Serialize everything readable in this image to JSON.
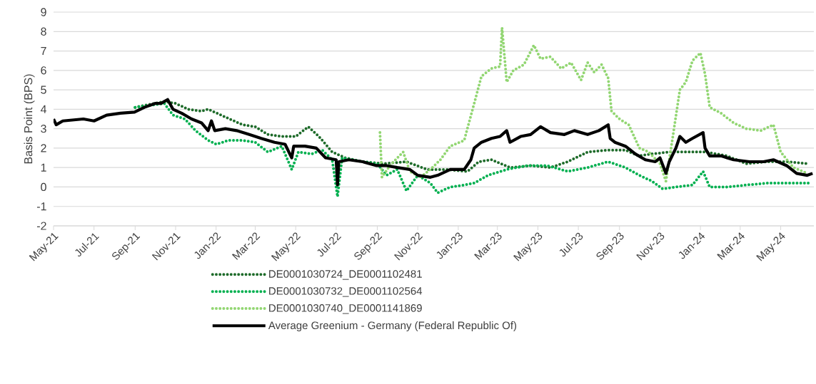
{
  "chart_data": {
    "type": "line",
    "ylabel": "Basis Point (BPS)",
    "xlim": [
      "2021-05-01",
      "2024-06-20"
    ],
    "ylim": [
      -2,
      9
    ],
    "yticks": [
      -2,
      -1,
      0,
      1,
      2,
      3,
      4,
      5,
      6,
      7,
      8,
      9
    ],
    "xticks": [
      {
        "value": "2021-05-01",
        "label": "May-21"
      },
      {
        "value": "2021-07-01",
        "label": "Jul-21"
      },
      {
        "value": "2021-09-01",
        "label": "Sep-21"
      },
      {
        "value": "2021-11-01",
        "label": "Nov-21"
      },
      {
        "value": "2022-01-01",
        "label": "Jan-22"
      },
      {
        "value": "2022-03-01",
        "label": "Mar-22"
      },
      {
        "value": "2022-05-01",
        "label": "May-22"
      },
      {
        "value": "2022-07-01",
        "label": "Jul-22"
      },
      {
        "value": "2022-09-01",
        "label": "Sep-22"
      },
      {
        "value": "2022-11-01",
        "label": "Nov-22"
      },
      {
        "value": "2023-01-01",
        "label": "Jan-23"
      },
      {
        "value": "2023-03-01",
        "label": "Mar-23"
      },
      {
        "value": "2023-05-01",
        "label": "May-23"
      },
      {
        "value": "2023-07-01",
        "label": "Jul-23"
      },
      {
        "value": "2023-09-01",
        "label": "Sep-23"
      },
      {
        "value": "2023-11-01",
        "label": "Nov-23"
      },
      {
        "value": "2024-01-01",
        "label": "Jan-24"
      },
      {
        "value": "2024-03-01",
        "label": "Mar-24"
      },
      {
        "value": "2024-05-01",
        "label": "May-24"
      }
    ],
    "grid": "y",
    "legend": "bottom",
    "series": [
      {
        "name": "DE0001030724_DE0001102481",
        "color": "#1e6b2a",
        "line_style": "dotted",
        "x": [
          "2021-09-01",
          "2021-10-15",
          "2021-11-01",
          "2021-11-20",
          "2021-12-10",
          "2021-12-20",
          "2022-01-15",
          "2022-02-10",
          "2022-03-01",
          "2022-03-20",
          "2022-04-10",
          "2022-05-01",
          "2022-05-20",
          "2022-06-05",
          "2022-06-25",
          "2022-07-15",
          "2022-08-10",
          "2022-09-10",
          "2022-10-15",
          "2022-11-15",
          "2022-12-15",
          "2023-01-15",
          "2023-02-01",
          "2023-02-20",
          "2023-03-20",
          "2023-04-20",
          "2023-05-20",
          "2023-06-15",
          "2023-07-15",
          "2023-08-15",
          "2023-09-10",
          "2023-09-30",
          "2023-10-20",
          "2023-11-15",
          "2023-12-10",
          "2024-01-10",
          "2024-02-10",
          "2024-03-10",
          "2024-04-10",
          "2024-05-10",
          "2024-06-10"
        ],
        "values": [
          4.1,
          4.4,
          4.3,
          4.0,
          3.9,
          4.0,
          3.6,
          3.2,
          3.1,
          2.7,
          2.6,
          2.6,
          3.1,
          2.6,
          1.8,
          1.5,
          1.3,
          1.2,
          1.3,
          0.9,
          0.9,
          0.8,
          1.3,
          1.4,
          1.0,
          1.1,
          1.0,
          1.3,
          1.8,
          1.9,
          1.9,
          1.6,
          1.7,
          1.8,
          1.8,
          1.8,
          1.6,
          1.2,
          1.3,
          1.3,
          1.2
        ]
      },
      {
        "name": "DE0001030732_DE0001102564",
        "color": "#00b050",
        "line_style": "dotted",
        "x": [
          "2021-09-01",
          "2021-10-15",
          "2021-10-28",
          "2021-11-15",
          "2021-12-01",
          "2021-12-20",
          "2022-01-01",
          "2022-01-20",
          "2022-02-10",
          "2022-03-01",
          "2022-03-20",
          "2022-04-10",
          "2022-04-25",
          "2022-05-05",
          "2022-05-25",
          "2022-06-10",
          "2022-06-25",
          "2022-07-03",
          "2022-07-10",
          "2022-08-10",
          "2022-09-01",
          "2022-09-15",
          "2022-10-01",
          "2022-10-15",
          "2022-11-01",
          "2022-11-20",
          "2022-12-01",
          "2022-12-20",
          "2023-01-10",
          "2023-01-25",
          "2023-02-15",
          "2023-03-15",
          "2023-04-15",
          "2023-05-15",
          "2023-06-15",
          "2023-07-15",
          "2023-08-15",
          "2023-09-10",
          "2023-10-01",
          "2023-10-20",
          "2023-11-05",
          "2023-11-25",
          "2023-12-20",
          "2024-01-05",
          "2024-01-15",
          "2024-02-10",
          "2024-03-10",
          "2024-04-10",
          "2024-05-10",
          "2024-06-15"
        ],
        "values": [
          4.1,
          4.3,
          3.7,
          3.5,
          2.9,
          2.4,
          2.2,
          2.4,
          2.4,
          2.3,
          1.8,
          2.1,
          0.9,
          1.8,
          1.7,
          1.9,
          1.4,
          -0.5,
          1.5,
          1.3,
          1.2,
          0.6,
          0.9,
          -0.2,
          0.6,
          0.2,
          -0.3,
          0.0,
          0.1,
          0.2,
          0.6,
          0.9,
          1.1,
          1.1,
          0.8,
          1.0,
          1.3,
          1.0,
          0.6,
          0.3,
          -0.1,
          0.0,
          0.1,
          0.8,
          0.0,
          0.0,
          0.1,
          0.2,
          0.2,
          0.2
        ]
      },
      {
        "name": "DE0001030740_DE0001141869",
        "color": "#92d672",
        "line_style": "dotted",
        "x": [
          "2022-09-05",
          "2022-09-08",
          "2022-09-20",
          "2022-10-10",
          "2022-10-20",
          "2022-11-05",
          "2022-11-20",
          "2022-12-05",
          "2022-12-20",
          "2023-01-10",
          "2023-01-25",
          "2023-02-05",
          "2023-02-20",
          "2023-03-05",
          "2023-03-08",
          "2023-03-15",
          "2023-03-25",
          "2023-04-10",
          "2023-04-25",
          "2023-05-05",
          "2023-05-20",
          "2023-06-05",
          "2023-06-20",
          "2023-07-05",
          "2023-07-15",
          "2023-07-25",
          "2023-08-05",
          "2023-08-15",
          "2023-08-20",
          "2023-09-01",
          "2023-09-15",
          "2023-10-01",
          "2023-10-15",
          "2023-11-01",
          "2023-11-10",
          "2023-11-20",
          "2023-12-01",
          "2023-12-10",
          "2023-12-20",
          "2024-01-01",
          "2024-01-08",
          "2024-01-15",
          "2024-02-01",
          "2024-02-20",
          "2024-03-10",
          "2024-04-01",
          "2024-04-20",
          "2024-05-01",
          "2024-05-20",
          "2024-06-10"
        ],
        "values": [
          2.8,
          0.5,
          1.1,
          1.8,
          0.8,
          0.5,
          0.9,
          1.4,
          2.1,
          2.4,
          4.3,
          5.7,
          6.1,
          6.2,
          8.2,
          5.4,
          6.0,
          6.3,
          7.3,
          6.6,
          6.7,
          6.1,
          6.4,
          5.5,
          6.4,
          5.9,
          6.3,
          5.6,
          3.9,
          3.5,
          3.2,
          2.0,
          1.8,
          1.2,
          0.3,
          2.5,
          5.0,
          5.4,
          6.5,
          6.9,
          5.8,
          4.1,
          3.8,
          3.3,
          3.0,
          2.9,
          3.2,
          1.8,
          1.0,
          0.7
        ]
      },
      {
        "name": "Average Greenium - Germany (Federal Republic Of)",
        "color": "#000000",
        "line_style": "solid",
        "x": [
          "2021-05-01",
          "2021-05-05",
          "2021-05-15",
          "2021-06-15",
          "2021-07-01",
          "2021-07-20",
          "2021-08-10",
          "2021-08-31",
          "2021-09-15",
          "2021-10-01",
          "2021-10-10",
          "2021-10-20",
          "2021-10-28",
          "2021-11-10",
          "2021-11-25",
          "2021-12-10",
          "2021-12-20",
          "2021-12-25",
          "2021-12-30",
          "2022-01-15",
          "2022-02-01",
          "2022-02-20",
          "2022-03-10",
          "2022-03-30",
          "2022-04-15",
          "2022-04-25",
          "2022-04-28",
          "2022-05-15",
          "2022-06-01",
          "2022-06-15",
          "2022-07-01",
          "2022-07-03",
          "2022-07-05",
          "2022-07-20",
          "2022-08-10",
          "2022-08-31",
          "2022-09-15",
          "2022-10-01",
          "2022-10-20",
          "2022-11-01",
          "2022-11-20",
          "2022-12-01",
          "2022-12-20",
          "2023-01-10",
          "2023-01-20",
          "2023-01-25",
          "2023-02-05",
          "2023-02-20",
          "2023-03-05",
          "2023-03-15",
          "2023-03-20",
          "2023-04-05",
          "2023-04-20",
          "2023-05-05",
          "2023-05-20",
          "2023-06-10",
          "2023-06-25",
          "2023-07-15",
          "2023-08-01",
          "2023-08-15",
          "2023-08-18",
          "2023-08-25",
          "2023-09-10",
          "2023-09-25",
          "2023-10-10",
          "2023-10-25",
          "2023-11-01",
          "2023-11-10",
          "2023-11-15",
          "2023-11-25",
          "2023-12-01",
          "2023-12-10",
          "2023-12-20",
          "2024-01-05",
          "2024-01-08",
          "2024-01-15",
          "2024-02-01",
          "2024-02-20",
          "2024-03-15",
          "2024-04-05",
          "2024-04-20",
          "2024-05-10",
          "2024-05-25",
          "2024-06-10",
          "2024-06-18"
        ],
        "values": [
          3.5,
          3.2,
          3.4,
          3.5,
          3.4,
          3.7,
          3.8,
          3.85,
          4.1,
          4.3,
          4.3,
          4.5,
          4.0,
          3.8,
          3.5,
          3.3,
          2.9,
          3.4,
          2.9,
          3.0,
          2.9,
          2.7,
          2.5,
          2.3,
          2.2,
          1.5,
          2.1,
          2.1,
          2.0,
          1.5,
          1.4,
          0.1,
          1.3,
          1.4,
          1.3,
          1.1,
          1.1,
          1.0,
          0.9,
          0.6,
          0.5,
          0.6,
          0.9,
          0.9,
          1.4,
          2.0,
          2.3,
          2.5,
          2.6,
          2.9,
          2.3,
          2.6,
          2.7,
          3.1,
          2.8,
          2.7,
          2.9,
          2.7,
          2.9,
          3.2,
          2.5,
          2.3,
          2.1,
          1.7,
          1.4,
          1.3,
          1.5,
          0.7,
          1.3,
          2.0,
          2.6,
          2.3,
          2.5,
          2.8,
          2.0,
          1.6,
          1.6,
          1.4,
          1.3,
          1.3,
          1.4,
          1.1,
          0.7,
          0.6,
          0.7
        ]
      }
    ]
  }
}
